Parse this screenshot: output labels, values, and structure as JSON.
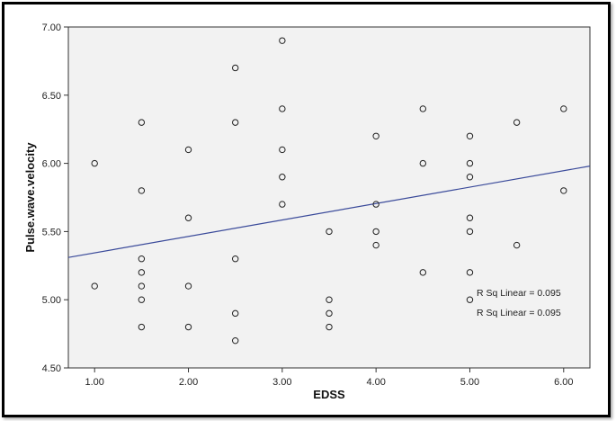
{
  "chart_data": {
    "type": "scatter",
    "xlabel": "EDSS",
    "ylabel": "Pulse.wave.velocity",
    "xlim": [
      0.72,
      6.28
    ],
    "ylim": [
      4.5,
      7.0
    ],
    "x_ticks": [
      "1.00",
      "2.00",
      "3.00",
      "4.00",
      "5.00",
      "6.00"
    ],
    "y_ticks": [
      "4.50",
      "5.00",
      "5.50",
      "6.00",
      "6.50",
      "7.00"
    ],
    "grid": false,
    "plot_background": "#f2f2f2",
    "marker_color": "#222222",
    "fit_line_color": "#3a4a9a",
    "points": [
      {
        "x": 1.0,
        "y": 6.0
      },
      {
        "x": 1.0,
        "y": 5.1
      },
      {
        "x": 1.5,
        "y": 6.3
      },
      {
        "x": 1.5,
        "y": 5.8
      },
      {
        "x": 1.5,
        "y": 5.3
      },
      {
        "x": 1.5,
        "y": 5.2
      },
      {
        "x": 1.5,
        "y": 5.1
      },
      {
        "x": 1.5,
        "y": 5.0
      },
      {
        "x": 1.5,
        "y": 4.8
      },
      {
        "x": 2.0,
        "y": 6.1
      },
      {
        "x": 2.0,
        "y": 5.6
      },
      {
        "x": 2.0,
        "y": 5.1
      },
      {
        "x": 2.0,
        "y": 4.8
      },
      {
        "x": 2.5,
        "y": 6.7
      },
      {
        "x": 2.5,
        "y": 6.3
      },
      {
        "x": 2.5,
        "y": 5.3
      },
      {
        "x": 2.5,
        "y": 4.9
      },
      {
        "x": 2.5,
        "y": 4.7
      },
      {
        "x": 3.0,
        "y": 6.9
      },
      {
        "x": 3.0,
        "y": 6.4
      },
      {
        "x": 3.0,
        "y": 6.1
      },
      {
        "x": 3.0,
        "y": 5.9
      },
      {
        "x": 3.0,
        "y": 5.7
      },
      {
        "x": 3.5,
        "y": 5.5
      },
      {
        "x": 3.5,
        "y": 5.0
      },
      {
        "x": 3.5,
        "y": 4.9
      },
      {
        "x": 3.5,
        "y": 4.8
      },
      {
        "x": 4.0,
        "y": 6.2
      },
      {
        "x": 4.0,
        "y": 5.7
      },
      {
        "x": 4.0,
        "y": 5.5
      },
      {
        "x": 4.0,
        "y": 5.4
      },
      {
        "x": 4.5,
        "y": 6.4
      },
      {
        "x": 4.5,
        "y": 6.0
      },
      {
        "x": 4.5,
        "y": 5.2
      },
      {
        "x": 5.0,
        "y": 6.2
      },
      {
        "x": 5.0,
        "y": 6.0
      },
      {
        "x": 5.0,
        "y": 5.9
      },
      {
        "x": 5.0,
        "y": 5.6
      },
      {
        "x": 5.0,
        "y": 5.5
      },
      {
        "x": 5.0,
        "y": 5.2
      },
      {
        "x": 5.0,
        "y": 5.0
      },
      {
        "x": 5.5,
        "y": 6.3
      },
      {
        "x": 5.5,
        "y": 5.4
      },
      {
        "x": 6.0,
        "y": 6.4
      },
      {
        "x": 6.0,
        "y": 5.8
      }
    ],
    "fit_line": {
      "x": [
        0.72,
        6.28
      ],
      "y": [
        5.31,
        5.98
      ]
    },
    "annotations": [
      "R Sq Linear = 0.095",
      "R Sq Linear = 0.095"
    ]
  }
}
